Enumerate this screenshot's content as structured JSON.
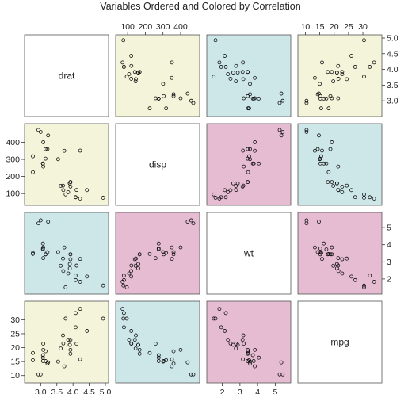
{
  "chart_data": {
    "type": "scatter",
    "title": "Variables Ordered and Colored by Correlation",
    "variables": [
      "drat",
      "disp",
      "wt",
      "mpg"
    ],
    "colors": {
      "high": "#e6bcd3",
      "medium": "#cde7e9",
      "low": "#f3f4d9",
      "diagonal": "#ffffff"
    },
    "cell_colors": [
      [
        "diagonal",
        "low",
        "medium",
        "low"
      ],
      [
        "low",
        "diagonal",
        "high",
        "medium"
      ],
      [
        "medium",
        "high",
        "diagonal",
        "high"
      ],
      [
        "low",
        "medium",
        "high",
        "diagonal"
      ]
    ],
    "axes": {
      "drat": {
        "lim": [
          2.6,
          5.0
        ],
        "ticks": [
          3.0,
          3.5,
          4.0,
          4.5,
          5.0
        ],
        "tick_labels": [
          "3.0",
          "3.5",
          "4.0",
          "4.5",
          "5.0"
        ],
        "side": "bottom"
      },
      "disp": {
        "lim": [
          50,
          490
        ],
        "ticks": [
          100,
          200,
          300,
          400
        ],
        "tick_labels": [
          "100",
          "200",
          "300",
          "400"
        ],
        "side": "top"
      },
      "wt": {
        "lim": [
          1.3,
          5.7
        ],
        "ticks": [
          2,
          3,
          4,
          5
        ],
        "tick_labels": [
          "2",
          "3",
          "4",
          "5"
        ],
        "side": "bottom"
      },
      "mpg": {
        "lim": [
          8.5,
          35.5
        ],
        "ticks": [
          10,
          15,
          20,
          25,
          30
        ],
        "tick_labels": [
          "10",
          "15",
          "20",
          "25",
          "30"
        ],
        "side": "top"
      }
    },
    "data": {
      "drat": [
        3.9,
        3.9,
        3.85,
        3.08,
        3.15,
        2.76,
        3.21,
        3.69,
        3.92,
        3.92,
        3.92,
        3.07,
        3.07,
        3.07,
        2.93,
        3.0,
        3.23,
        4.08,
        4.93,
        4.22,
        3.7,
        2.76,
        3.15,
        3.73,
        3.08,
        4.08,
        4.43,
        3.77,
        4.22,
        3.62,
        3.54,
        4.11
      ],
      "disp": [
        160.0,
        160.0,
        108.0,
        258.0,
        360.0,
        225.0,
        360.0,
        146.7,
        140.8,
        167.6,
        167.6,
        275.8,
        275.8,
        275.8,
        472.0,
        460.0,
        440.0,
        78.7,
        75.7,
        71.1,
        120.1,
        318.0,
        304.0,
        350.0,
        400.0,
        79.0,
        120.3,
        95.1,
        351.0,
        145.0,
        301.0,
        121.0
      ],
      "wt": [
        2.62,
        2.875,
        2.32,
        3.215,
        3.44,
        3.46,
        3.57,
        3.19,
        3.15,
        3.44,
        3.44,
        4.07,
        3.73,
        3.78,
        5.25,
        5.424,
        5.345,
        2.2,
        1.615,
        1.835,
        2.465,
        3.52,
        3.435,
        3.84,
        3.845,
        1.935,
        2.14,
        1.513,
        3.17,
        2.77,
        3.57,
        2.78
      ],
      "mpg": [
        21.0,
        21.0,
        22.8,
        21.4,
        18.7,
        18.1,
        14.3,
        24.4,
        22.8,
        19.2,
        17.8,
        16.4,
        17.3,
        15.2,
        10.4,
        10.4,
        14.7,
        32.4,
        30.4,
        33.9,
        21.5,
        15.5,
        15.2,
        13.3,
        19.2,
        27.3,
        26.0,
        30.4,
        15.8,
        19.7,
        15.0,
        21.4
      ]
    }
  }
}
